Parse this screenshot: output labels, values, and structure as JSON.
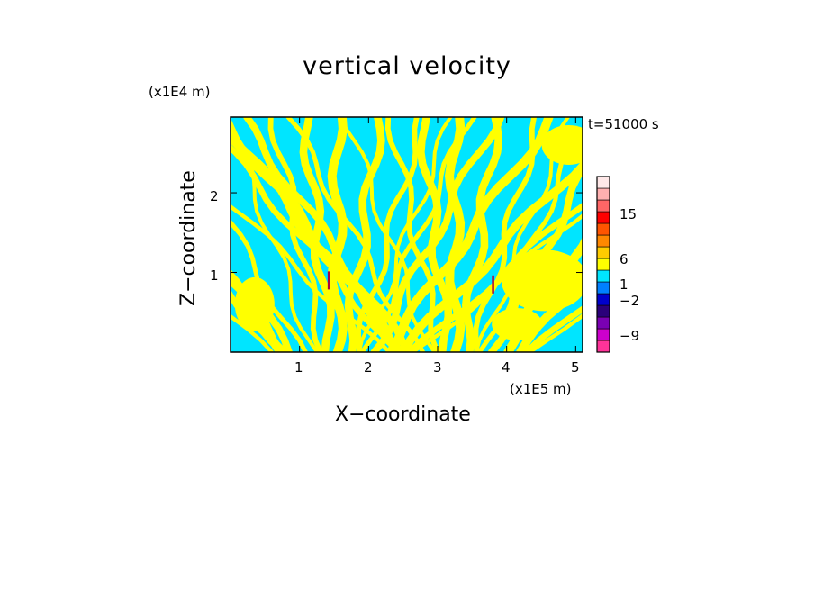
{
  "chart_data": {
    "type": "heatmap",
    "title": "vertical velocity",
    "xlabel": "X−coordinate",
    "ylabel": "Z−coordinate",
    "x_unit": "(x1E5 m)",
    "y_unit": "(x1E4 m)",
    "time_label": "t=51000 s",
    "xlim": [
      0,
      5.1
    ],
    "ylim": [
      0,
      2.95
    ],
    "x_ticks": [
      "1",
      "2",
      "3",
      "4",
      "5"
    ],
    "y_ticks": [
      "1",
      "2"
    ],
    "colorbar": {
      "levels": [
        {
          "color": "#ff3399"
        },
        {
          "color": "#cc00cc"
        },
        {
          "color": "#7a00b3"
        },
        {
          "color": "#2a007a"
        },
        {
          "color": "#0000cc"
        },
        {
          "color": "#0080ff"
        },
        {
          "color": "#00e5ff"
        },
        {
          "color": "#ffff00"
        },
        {
          "color": "#ffcc00"
        },
        {
          "color": "#ff8800"
        },
        {
          "color": "#ff5500"
        },
        {
          "color": "#ff0000"
        },
        {
          "color": "#ff6666"
        },
        {
          "color": "#ffb0b0"
        },
        {
          "color": "#ffe8e8"
        }
      ],
      "labels": [
        "15",
        "6",
        "1",
        "−2",
        "−9"
      ]
    },
    "colors": {
      "positive_fill": "#ffff00",
      "negative_fill": "#00e5ff"
    }
  }
}
